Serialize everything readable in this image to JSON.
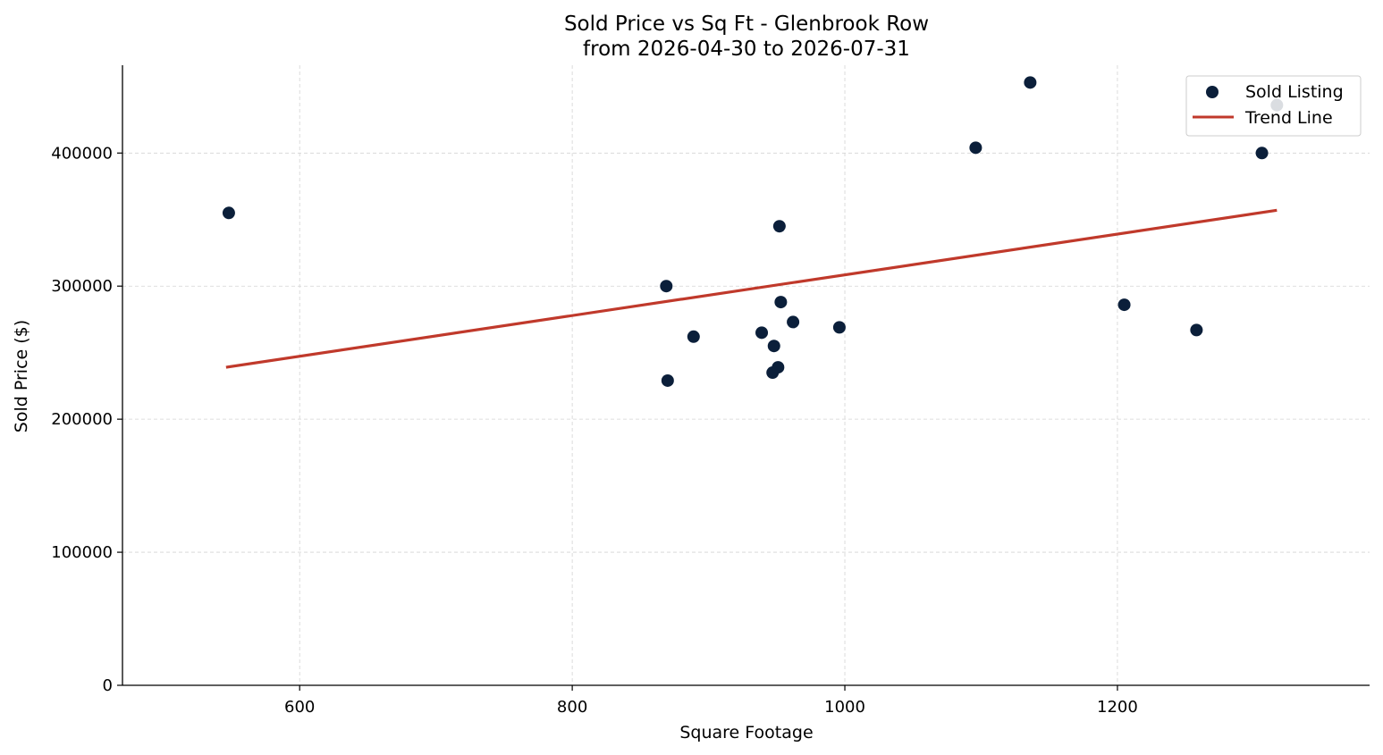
{
  "chart_data": {
    "type": "scatter",
    "title": "Sold Price vs Sq Ft - Glenbrook Row",
    "subtitle": "from 2026-04-30 to 2026-07-31",
    "xlabel": "Square Footage",
    "ylabel": "Sold Price ($)",
    "xlim": [
      470,
      1385
    ],
    "ylim": [
      0,
      466000
    ],
    "xticks": [
      600,
      800,
      1000,
      1200
    ],
    "yticks": [
      0,
      100000,
      200000,
      300000,
      400000
    ],
    "grid": true,
    "legend_position": "top-right",
    "series": [
      {
        "name": "Sold Listing",
        "kind": "scatter",
        "color": "#0b1f3a",
        "points": [
          {
            "x": 548,
            "y": 355000
          },
          {
            "x": 869,
            "y": 300000
          },
          {
            "x": 870,
            "y": 229000
          },
          {
            "x": 889,
            "y": 262000
          },
          {
            "x": 939,
            "y": 265000
          },
          {
            "x": 947,
            "y": 235000
          },
          {
            "x": 948,
            "y": 255000
          },
          {
            "x": 951,
            "y": 239000
          },
          {
            "x": 952,
            "y": 345000
          },
          {
            "x": 953,
            "y": 288000
          },
          {
            "x": 962,
            "y": 273000
          },
          {
            "x": 996,
            "y": 269000
          },
          {
            "x": 1096,
            "y": 404000
          },
          {
            "x": 1136,
            "y": 453000
          },
          {
            "x": 1205,
            "y": 286000
          },
          {
            "x": 1258,
            "y": 267000
          },
          {
            "x": 1306,
            "y": 400000
          },
          {
            "x": 1317,
            "y": 436000
          }
        ]
      },
      {
        "name": "Trend Line",
        "kind": "line",
        "color": "#c0392b",
        "points": [
          {
            "x": 546,
            "y": 239000
          },
          {
            "x": 1317,
            "y": 357000
          }
        ]
      }
    ]
  }
}
